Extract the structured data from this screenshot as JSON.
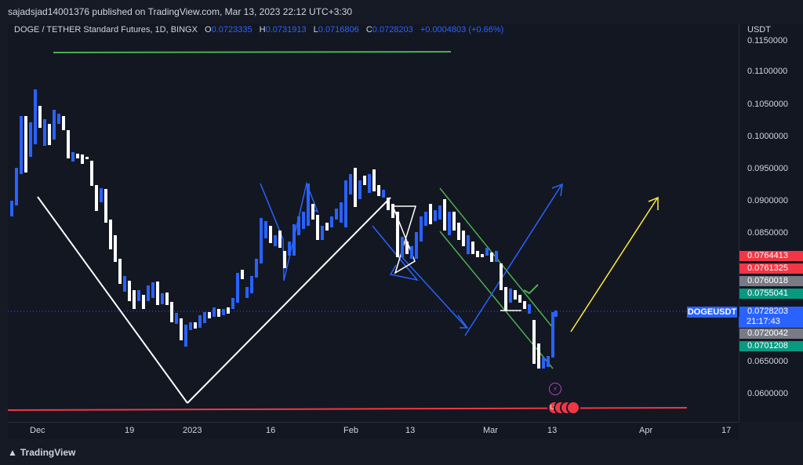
{
  "header": {
    "publisher": "sajadsjad14001376 published on TradingView.com, Mar 13, 2023 22:12 UTC+3:30"
  },
  "legend": {
    "symbol": "DOGE / TETHER Standard Futures, 1D, BINGX",
    "o_label": "O",
    "o_value": "0.0723335",
    "h_label": "H",
    "h_value": "0.0731913",
    "l_label": "L",
    "l_value": "0.0716806",
    "c_label": "C",
    "c_value": "0.0728203",
    "change": "+0.0004803 (+0.66%)"
  },
  "price_axis": {
    "currency": "USDT",
    "ticks": [
      "0.1150000",
      "0.1100000",
      "0.1050000",
      "0.1000000",
      "0.0950000",
      "0.0900000",
      "0.0850000",
      "0.0650000",
      "0.0600000"
    ],
    "tags": [
      {
        "value": "0.0764413",
        "color": "#f23645"
      },
      {
        "value": "0.0761325",
        "color": "#f23645"
      },
      {
        "value": "0.0760018",
        "color": "#787b86"
      },
      {
        "value": "0.0755041",
        "color": "#089981"
      },
      {
        "value": "0.0728203",
        "color": "#2962ff"
      },
      {
        "value": "0.0720042",
        "color": "#787b86"
      },
      {
        "value": "0.0701208",
        "color": "#089981"
      }
    ]
  },
  "symbol_label": "DOGEUSDT",
  "countdown": "21:17:43",
  "time_axis": [
    "Dec",
    "19",
    "2023",
    "16",
    "Feb",
    "13",
    "Mar",
    "13",
    "Apr",
    "17"
  ],
  "footer": {
    "brand": "TradingView"
  },
  "colors": {
    "bg": "#131722",
    "candle": "#2962ff",
    "candle_bull": "#ffffff"
  }
}
